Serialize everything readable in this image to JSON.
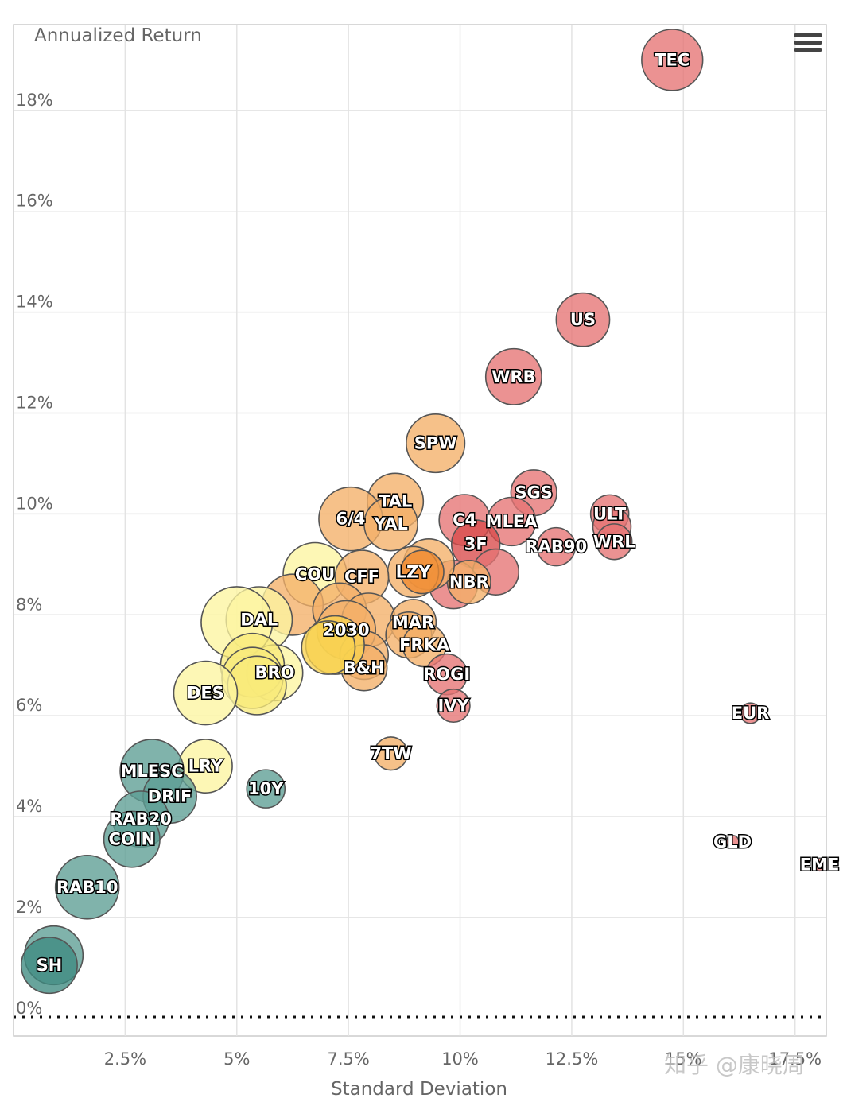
{
  "chart_data": {
    "type": "scatter",
    "subtype": "bubble",
    "title": "",
    "ylabel": "Annualized Return",
    "xlabel": "Standard Deviation",
    "xlim": [
      0,
      18.2
    ],
    "ylim": [
      -0.35,
      19.7
    ],
    "x_ticks": [
      2.5,
      5,
      7.5,
      10,
      12.5,
      15,
      17.5
    ],
    "x_tick_labels": [
      "2.5%",
      "5%",
      "7.5%",
      "10%",
      "12.5%",
      "15%",
      "17.5%"
    ],
    "y_ticks": [
      0,
      2,
      4,
      6,
      8,
      10,
      12,
      14,
      16,
      18
    ],
    "y_tick_labels": [
      "0%",
      "2%",
      "4%",
      "6%",
      "8%",
      "10%",
      "12%",
      "14%",
      "16%",
      "18%"
    ],
    "grid": true,
    "reference_line": {
      "y": 0,
      "style": "dotted"
    },
    "colors": {
      "teal": "#5c9e94",
      "yellow": "#f9ea7a",
      "light_orange": "#f4b068",
      "orange": "#f08a30",
      "red": "#e57373",
      "deep_red": "#d84a4a"
    },
    "points": [
      {
        "label": "TEC",
        "x": 14.75,
        "y": 19.0,
        "size": 2.4,
        "color": "#e57373"
      },
      {
        "label": "US",
        "x": 12.75,
        "y": 13.85,
        "size": 2.1,
        "color": "#e57373"
      },
      {
        "label": "WRB",
        "x": 11.2,
        "y": 12.72,
        "size": 2.2,
        "color": "#e57373"
      },
      {
        "label": "SPW",
        "x": 9.45,
        "y": 11.4,
        "size": 2.3,
        "color": "#f4b068"
      },
      {
        "label": "SGS",
        "x": 11.65,
        "y": 10.42,
        "size": 1.8,
        "color": "#e57373"
      },
      {
        "label": "ULT",
        "x": 13.35,
        "y": 10.0,
        "size": 1.5,
        "color": "#e57373"
      },
      {
        "label": "",
        "x": 13.4,
        "y": 9.75,
        "size": 1.5,
        "color": "#e57373"
      },
      {
        "label": "WRL",
        "x": 13.45,
        "y": 9.45,
        "size": 1.4,
        "color": "#e57373"
      },
      {
        "label": "RAB90",
        "x": 12.15,
        "y": 9.35,
        "size": 1.5,
        "color": "#e57373"
      },
      {
        "label": "TAL",
        "x": 8.55,
        "y": 10.25,
        "size": 2.2,
        "color": "#f4b068"
      },
      {
        "label": "6/4",
        "x": 7.55,
        "y": 9.9,
        "size": 2.5,
        "color": "#f4b068"
      },
      {
        "label": "YAL",
        "x": 8.45,
        "y": 9.8,
        "size": 2.1,
        "color": "#f4b068"
      },
      {
        "label": "C4",
        "x": 10.1,
        "y": 9.88,
        "size": 2.0,
        "color": "#e57373"
      },
      {
        "label": "MLEA",
        "x": 11.15,
        "y": 9.85,
        "size": 1.9,
        "color": "#e57373"
      },
      {
        "label": "3F",
        "x": 10.35,
        "y": 9.4,
        "size": 1.9,
        "color": "#d84a4a"
      },
      {
        "label": "",
        "x": 10.8,
        "y": 8.85,
        "size": 1.8,
        "color": "#e57373"
      },
      {
        "label": "",
        "x": 9.85,
        "y": 8.6,
        "size": 1.9,
        "color": "#e57373"
      },
      {
        "label": "NBR",
        "x": 10.2,
        "y": 8.65,
        "size": 1.7,
        "color": "#f4b068"
      },
      {
        "label": "",
        "x": 9.3,
        "y": 9.0,
        "size": 2.0,
        "color": "#f4b068"
      },
      {
        "label": "LZY",
        "x": 8.95,
        "y": 8.85,
        "size": 2.0,
        "color": "#f4b068"
      },
      {
        "label": "",
        "x": 9.15,
        "y": 8.85,
        "size": 1.7,
        "color": "#f08a30"
      },
      {
        "label": "COU",
        "x": 6.75,
        "y": 8.8,
        "size": 2.5,
        "color": "#fdf5a0"
      },
      {
        "label": "CFF",
        "x": 7.8,
        "y": 8.75,
        "size": 2.1,
        "color": "#f4b068"
      },
      {
        "label": "",
        "x": 6.25,
        "y": 8.2,
        "size": 2.4,
        "color": "#f4b068"
      },
      {
        "label": "",
        "x": 7.3,
        "y": 8.1,
        "size": 2.1,
        "color": "#f4b068"
      },
      {
        "label": "",
        "x": 7.95,
        "y": 7.9,
        "size": 2.1,
        "color": "#f4b068"
      },
      {
        "label": "2030",
        "x": 7.45,
        "y": 7.7,
        "size": 2.3,
        "color": "#f4b068"
      },
      {
        "label": "",
        "x": 7.85,
        "y": 7.2,
        "size": 1.9,
        "color": "#f4b068"
      },
      {
        "label": "B&H",
        "x": 7.85,
        "y": 6.95,
        "size": 1.8,
        "color": "#f4b068"
      },
      {
        "label": "",
        "x": 7.2,
        "y": 7.4,
        "size": 2.3,
        "color": "#f9d250"
      },
      {
        "label": "",
        "x": 7.05,
        "y": 7.35,
        "size": 2.1,
        "color": "#f9d250"
      },
      {
        "label": "DAL",
        "x": 5.5,
        "y": 7.9,
        "size": 2.6,
        "color": "#fdf5a0"
      },
      {
        "label": "",
        "x": 5.0,
        "y": 7.85,
        "size": 2.8,
        "color": "#fdf5a0"
      },
      {
        "label": "BRO",
        "x": 5.85,
        "y": 6.85,
        "size": 2.2,
        "color": "#fdf5a0"
      },
      {
        "label": "",
        "x": 5.35,
        "y": 7.0,
        "size": 2.5,
        "color": "#f9ea7a"
      },
      {
        "label": "",
        "x": 5.35,
        "y": 6.75,
        "size": 2.4,
        "color": "#f9ea7a"
      },
      {
        "label": "",
        "x": 5.45,
        "y": 6.6,
        "size": 2.3,
        "color": "#f9ea7a"
      },
      {
        "label": "DES",
        "x": 4.3,
        "y": 6.45,
        "size": 2.5,
        "color": "#fdf5a0"
      },
      {
        "label": "MAR",
        "x": 8.95,
        "y": 7.85,
        "size": 1.8,
        "color": "#f4b068"
      },
      {
        "label": "",
        "x": 8.85,
        "y": 7.6,
        "size": 1.8,
        "color": "#f4b068"
      },
      {
        "label": "FRKA",
        "x": 9.2,
        "y": 7.4,
        "size": 1.7,
        "color": "#f4b068"
      },
      {
        "label": "ROGI",
        "x": 9.7,
        "y": 6.82,
        "size": 1.6,
        "color": "#e57373"
      },
      {
        "label": "IVY",
        "x": 9.85,
        "y": 6.2,
        "size": 1.3,
        "color": "#e57373"
      },
      {
        "label": "EUR",
        "x": 16.5,
        "y": 6.05,
        "size": 0.8,
        "color": "#e57373"
      },
      {
        "label": "7TW",
        "x": 8.45,
        "y": 5.25,
        "size": 1.3,
        "color": "#f4b068"
      },
      {
        "label": "LRY",
        "x": 4.3,
        "y": 5.0,
        "size": 2.1,
        "color": "#fdf5a0"
      },
      {
        "label": "MLESC",
        "x": 3.1,
        "y": 4.9,
        "size": 2.5,
        "color": "#5c9e94"
      },
      {
        "label": "DRIF",
        "x": 3.5,
        "y": 4.4,
        "size": 2.1,
        "color": "#5c9e94"
      },
      {
        "label": "10Y",
        "x": 5.65,
        "y": 4.55,
        "size": 1.5,
        "color": "#5c9e94"
      },
      {
        "label": "RAB20",
        "x": 2.85,
        "y": 3.95,
        "size": 2.2,
        "color": "#5c9e94"
      },
      {
        "label": "COIN",
        "x": 2.65,
        "y": 3.55,
        "size": 2.2,
        "color": "#5c9e94"
      },
      {
        "label": "RAB10",
        "x": 1.65,
        "y": 2.6,
        "size": 2.5,
        "color": "#5c9e94"
      },
      {
        "label": "",
        "x": 0.9,
        "y": 1.25,
        "size": 2.3,
        "color": "#5c9e94"
      },
      {
        "label": "SH",
        "x": 0.8,
        "y": 1.05,
        "size": 2.2,
        "color": "#3d8a80"
      },
      {
        "label": "GLD",
        "x": 16.1,
        "y": 3.5,
        "size": 0.5,
        "color": "#e57373"
      },
      {
        "label": "EME",
        "x": 18.05,
        "y": 3.05,
        "size": 0.5,
        "color": "#e57373"
      }
    ]
  },
  "watermark": "知乎 @康晓周",
  "menu": {
    "icon": "hamburger-menu-icon"
  }
}
